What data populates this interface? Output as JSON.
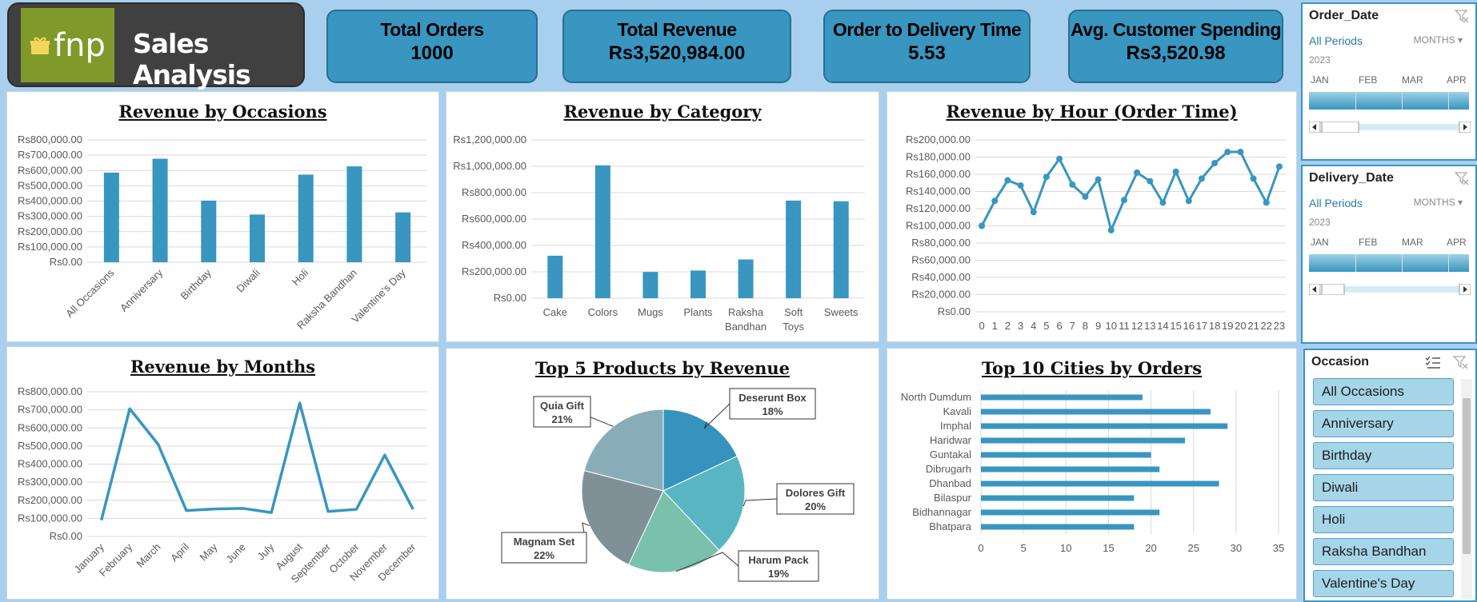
{
  "brand": {
    "logo_text": "fnp",
    "title": "Sales Analysis"
  },
  "kpis": [
    {
      "label": "Total Orders",
      "value": "1000"
    },
    {
      "label": "Total Revenue",
      "value": "Rs3,520,984.00"
    },
    {
      "label": "Order to Delivery Time",
      "value": "5.53"
    },
    {
      "label": "Avg. Customer Spending",
      "value": "Rs3,520.98"
    }
  ],
  "colors": {
    "accent": "#3896c0",
    "background": "#a9cfee",
    "header": "#404040",
    "logo": "#7f9a2a"
  },
  "chart_data": [
    {
      "type": "bar",
      "title": "Revenue by Occasions",
      "categories": [
        "All Occasions",
        "Anniversary",
        "Birthday",
        "Diwali",
        "Holi",
        "Raksha Bandhan",
        "Valentine's Day"
      ],
      "values": [
        586000,
        677000,
        403000,
        312000,
        573000,
        627000,
        326000
      ],
      "ylim": [
        0,
        800000
      ],
      "yticks": [
        "Rs0.00",
        "Rs100,000.00",
        "Rs200,000.00",
        "Rs300,000.00",
        "Rs400,000.00",
        "Rs500,000.00",
        "Rs600,000.00",
        "Rs700,000.00",
        "Rs800,000.00"
      ]
    },
    {
      "type": "bar",
      "title": "Revenue by Category",
      "categories": [
        "Cake",
        "Colors",
        "Mugs",
        "Plants",
        "Raksha Bandhan",
        "Soft Toys",
        "Sweets"
      ],
      "values": [
        322000,
        1007000,
        199000,
        210000,
        294000,
        740000,
        735000
      ],
      "ylim": [
        0,
        1200000
      ],
      "yticks": [
        "Rs0.00",
        "Rs200,000.00",
        "Rs400,000.00",
        "Rs600,000.00",
        "Rs800,000.00",
        "Rs1,000,000.00",
        "Rs1,200,000.00"
      ]
    },
    {
      "type": "line",
      "title": "Revenue by Hour (Order Time)",
      "x": [
        "0",
        "1",
        "2",
        "3",
        "4",
        "5",
        "6",
        "7",
        "8",
        "9",
        "10",
        "11",
        "12",
        "13",
        "14",
        "15",
        "16",
        "17",
        "18",
        "19",
        "20",
        "21",
        "22",
        "23"
      ],
      "values": [
        100000,
        129000,
        153000,
        147000,
        116000,
        157000,
        178000,
        148000,
        134000,
        154000,
        95000,
        130000,
        162000,
        152000,
        127000,
        163000,
        129000,
        155000,
        173000,
        186000,
        186000,
        155000,
        127000,
        169000
      ],
      "ylim": [
        0,
        200000
      ],
      "yticks": [
        "Rs0.00",
        "Rs20,000.00",
        "Rs40,000.00",
        "Rs60,000.00",
        "Rs80,000.00",
        "Rs100,000.00",
        "Rs120,000.00",
        "Rs140,000.00",
        "Rs160,000.00",
        "Rs180,000.00",
        "Rs200,000.00"
      ]
    },
    {
      "type": "line",
      "title": "Revenue by Months",
      "categories": [
        "January",
        "February",
        "March",
        "April",
        "May",
        "June",
        "July",
        "August",
        "September",
        "October",
        "November",
        "December"
      ],
      "values": [
        90000,
        706000,
        510000,
        143000,
        152000,
        155000,
        132000,
        738000,
        138000,
        150000,
        450000,
        150000
      ],
      "ylim": [
        0,
        800000
      ],
      "yticks": [
        "Rs0.00",
        "Rs100,000.00",
        "Rs200,000.00",
        "Rs300,000.00",
        "Rs400,000.00",
        "Rs500,000.00",
        "Rs600,000.00",
        "Rs700,000.00",
        "Rs800,000.00"
      ]
    },
    {
      "type": "pie",
      "title": "Top 5 Products by Revenue",
      "slices": [
        {
          "label": "Deserunt Box",
          "pct": "18%",
          "value": 18,
          "color": "#3593bd"
        },
        {
          "label": "Dolores Gift",
          "pct": "20%",
          "value": 20,
          "color": "#5ab5c3"
        },
        {
          "label": "Harum Pack",
          "pct": "19%",
          "value": 19,
          "color": "#79c1ad"
        },
        {
          "label": "Magnam Set",
          "pct": "22%",
          "value": 22,
          "color": "#7f9096"
        },
        {
          "label": "Quia Gift",
          "pct": "21%",
          "value": 21,
          "color": "#88adb8"
        }
      ]
    },
    {
      "type": "bar",
      "orientation": "horizontal",
      "title": "Top 10 Cities by Orders",
      "categories": [
        "North Dumdum",
        "Kavali",
        "Imphal",
        "Haridwar",
        "Guntakal",
        "Dibrugarh",
        "Dhanbad",
        "Bilaspur",
        "Bidhannagar",
        "Bhatpara"
      ],
      "values": [
        19,
        27,
        29,
        24,
        20,
        21,
        28,
        18,
        21,
        18
      ],
      "xlim": [
        0,
        35
      ],
      "xticks": [
        "0",
        "5",
        "10",
        "15",
        "20",
        "25",
        "30",
        "35"
      ]
    }
  ],
  "slicers": {
    "order_date": {
      "title": "Order_Date",
      "all": "All Periods",
      "unit": "MONTHS",
      "year": "2023",
      "months": [
        "JAN",
        "FEB",
        "MAR",
        "APR"
      ]
    },
    "delivery_date": {
      "title": "Delivery_Date",
      "all": "All Periods",
      "unit": "MONTHS",
      "year": "2023",
      "months": [
        "JAN",
        "FEB",
        "MAR",
        "APR"
      ]
    },
    "occasion": {
      "title": "Occasion",
      "items": [
        "All Occasions",
        "Anniversary",
        "Birthday",
        "Diwali",
        "Holi",
        "Raksha Bandhan",
        "Valentine's Day"
      ]
    }
  },
  "icons": [
    "gift-icon",
    "filter-clear-icon",
    "multi-select-icon",
    "scroll-left-icon",
    "scroll-right-icon"
  ]
}
